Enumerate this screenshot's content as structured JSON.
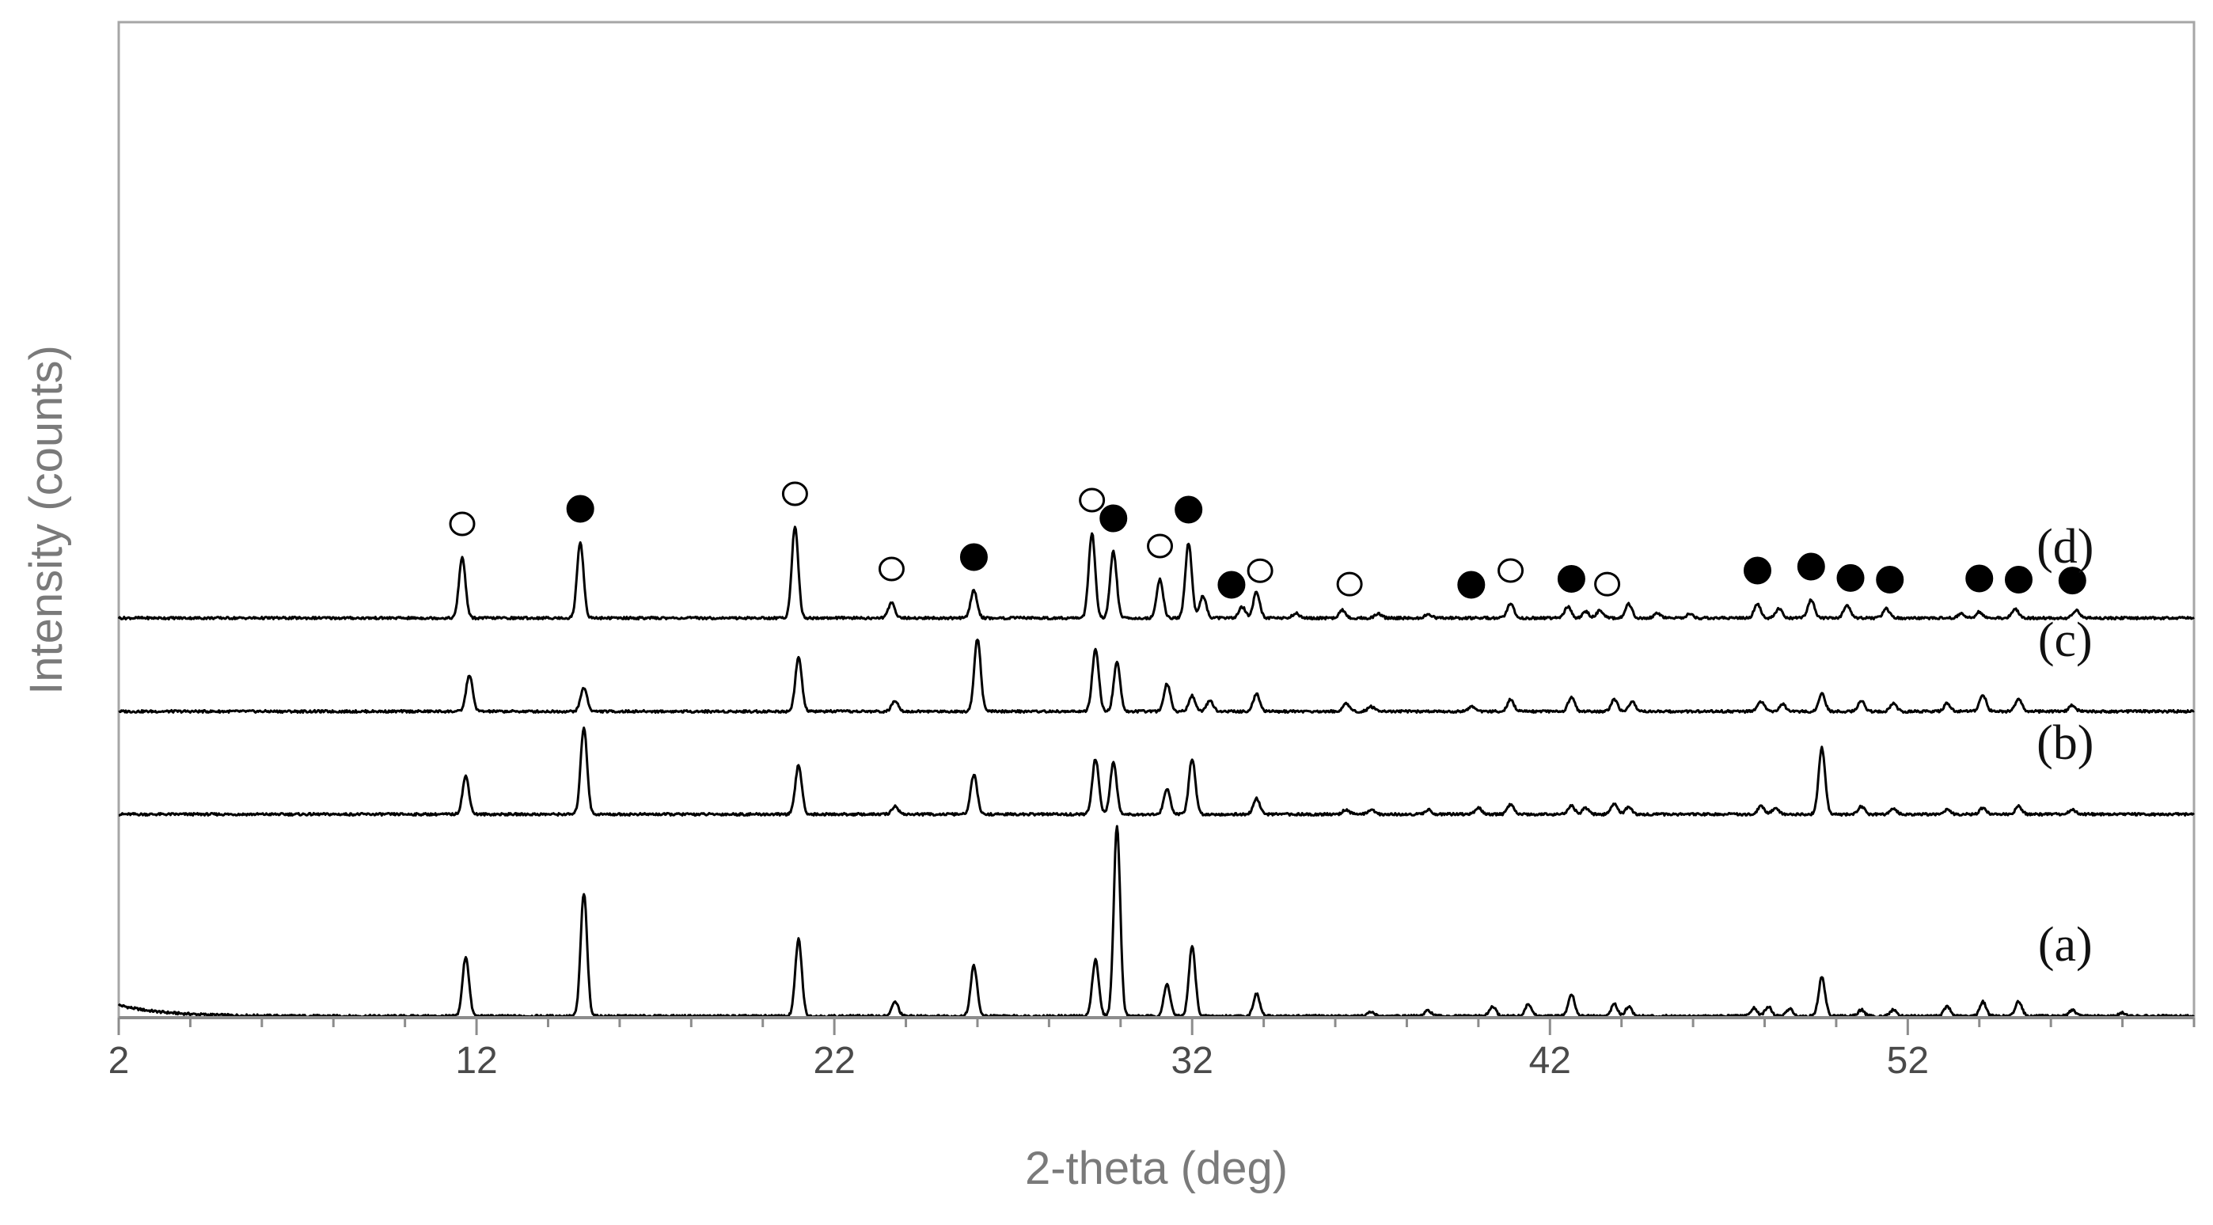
{
  "chart_data": {
    "type": "line",
    "xlabel": "2-theta (deg)",
    "ylabel": "Intensity (counts)",
    "xlim": [
      2,
      60
    ],
    "x_ticks": [
      2,
      12,
      22,
      32,
      42,
      52
    ],
    "y_ticks": [],
    "grid": false,
    "legend": "none",
    "colors": {
      "trace": "#000000",
      "axis": "#9a9a9a",
      "text": "#4a4a4a"
    },
    "markers": {
      "open": "open-circle",
      "filled": "filled-circle"
    },
    "series": [
      {
        "name": "(a)",
        "offset": 0,
        "peaks": [
          [
            11.7,
            75
          ],
          [
            15.0,
            155
          ],
          [
            21.0,
            97
          ],
          [
            23.7,
            18
          ],
          [
            25.9,
            64
          ],
          [
            29.3,
            72
          ],
          [
            29.9,
            240
          ],
          [
            31.3,
            40
          ],
          [
            32.0,
            88
          ],
          [
            33.8,
            28
          ],
          [
            37.0,
            5
          ],
          [
            38.6,
            7
          ],
          [
            40.4,
            12
          ],
          [
            41.4,
            15
          ],
          [
            42.6,
            28
          ],
          [
            43.8,
            15
          ],
          [
            44.2,
            12
          ],
          [
            47.7,
            10
          ],
          [
            48.1,
            12
          ],
          [
            48.7,
            9
          ],
          [
            49.6,
            49
          ],
          [
            50.7,
            8
          ],
          [
            51.6,
            8
          ],
          [
            53.1,
            12
          ],
          [
            54.1,
            18
          ],
          [
            55.1,
            19
          ],
          [
            56.6,
            8
          ],
          [
            58.0,
            4
          ]
        ]
      },
      {
        "name": "(b)",
        "offset": 255,
        "peaks": [
          [
            11.7,
            48
          ],
          [
            15.0,
            110
          ],
          [
            21.0,
            62
          ],
          [
            23.7,
            10
          ],
          [
            25.9,
            50
          ],
          [
            29.3,
            70
          ],
          [
            29.8,
            65
          ],
          [
            31.3,
            32
          ],
          [
            32.0,
            70
          ],
          [
            33.8,
            20
          ],
          [
            36.3,
            6
          ],
          [
            37.0,
            6
          ],
          [
            38.6,
            6
          ],
          [
            40.0,
            8
          ],
          [
            40.9,
            12
          ],
          [
            42.6,
            11
          ],
          [
            43.0,
            8
          ],
          [
            43.8,
            14
          ],
          [
            44.2,
            9
          ],
          [
            47.9,
            10
          ],
          [
            48.3,
            8
          ],
          [
            49.6,
            84
          ],
          [
            50.7,
            10
          ],
          [
            51.6,
            7
          ],
          [
            53.1,
            6
          ],
          [
            54.1,
            8
          ],
          [
            55.1,
            10
          ],
          [
            56.6,
            6
          ]
        ]
      },
      {
        "name": "(c)",
        "offset": 385,
        "peaks": [
          [
            11.8,
            46
          ],
          [
            15.0,
            30
          ],
          [
            21.0,
            68
          ],
          [
            23.7,
            14
          ],
          [
            26.0,
            92
          ],
          [
            29.3,
            79
          ],
          [
            29.9,
            62
          ],
          [
            31.3,
            35
          ],
          [
            32.0,
            20
          ],
          [
            32.5,
            14
          ],
          [
            33.8,
            22
          ],
          [
            36.3,
            10
          ],
          [
            37.0,
            6
          ],
          [
            39.8,
            6
          ],
          [
            40.9,
            15
          ],
          [
            42.6,
            18
          ],
          [
            43.8,
            15
          ],
          [
            44.3,
            12
          ],
          [
            47.9,
            12
          ],
          [
            48.5,
            9
          ],
          [
            49.6,
            22
          ],
          [
            50.7,
            14
          ],
          [
            51.6,
            10
          ],
          [
            53.1,
            10
          ],
          [
            54.1,
            21
          ],
          [
            55.1,
            16
          ],
          [
            56.6,
            8
          ]
        ]
      },
      {
        "name": "(d)",
        "offset": 503,
        "peaks": [
          [
            11.6,
            77
          ],
          [
            14.9,
            96
          ],
          [
            20.9,
            115
          ],
          [
            23.6,
            20
          ],
          [
            25.9,
            35
          ],
          [
            29.2,
            107
          ],
          [
            29.8,
            84
          ],
          [
            31.1,
            49
          ],
          [
            31.9,
            95
          ],
          [
            32.3,
            28
          ],
          [
            33.4,
            14
          ],
          [
            33.8,
            33
          ],
          [
            34.9,
            6
          ],
          [
            36.2,
            10
          ],
          [
            37.2,
            6
          ],
          [
            38.6,
            5
          ],
          [
            40.9,
            18
          ],
          [
            42.5,
            14
          ],
          [
            43.0,
            8
          ],
          [
            43.4,
            10
          ],
          [
            44.2,
            18
          ],
          [
            45.0,
            6
          ],
          [
            45.9,
            5
          ],
          [
            47.8,
            18
          ],
          [
            48.4,
            12
          ],
          [
            49.3,
            23
          ],
          [
            50.3,
            16
          ],
          [
            51.4,
            12
          ],
          [
            53.5,
            6
          ],
          [
            54.0,
            8
          ],
          [
            55.0,
            12
          ],
          [
            56.7,
            10
          ]
        ]
      }
    ],
    "phase_markers": [
      {
        "series": "(d)",
        "x": 11.6,
        "type": "open"
      },
      {
        "series": "(d)",
        "x": 14.9,
        "type": "filled"
      },
      {
        "series": "(d)",
        "x": 20.9,
        "type": "open"
      },
      {
        "series": "(d)",
        "x": 23.6,
        "type": "open"
      },
      {
        "series": "(d)",
        "x": 25.9,
        "type": "filled"
      },
      {
        "series": "(d)",
        "x": 29.2,
        "type": "open"
      },
      {
        "series": "(d)",
        "x": 29.8,
        "type": "filled"
      },
      {
        "series": "(d)",
        "x": 31.1,
        "type": "open"
      },
      {
        "series": "(d)",
        "x": 31.9,
        "type": "filled"
      },
      {
        "series": "(d)",
        "x": 33.1,
        "type": "filled"
      },
      {
        "series": "(d)",
        "x": 33.9,
        "type": "open"
      },
      {
        "series": "(d)",
        "x": 36.4,
        "type": "open"
      },
      {
        "series": "(d)",
        "x": 39.8,
        "type": "filled"
      },
      {
        "series": "(d)",
        "x": 40.9,
        "type": "open"
      },
      {
        "series": "(d)",
        "x": 42.6,
        "type": "filled"
      },
      {
        "series": "(d)",
        "x": 43.6,
        "type": "open"
      },
      {
        "series": "(d)",
        "x": 47.8,
        "type": "filled"
      },
      {
        "series": "(d)",
        "x": 49.3,
        "type": "filled"
      },
      {
        "series": "(d)",
        "x": 50.4,
        "type": "filled"
      },
      {
        "series": "(d)",
        "x": 51.5,
        "type": "filled"
      },
      {
        "series": "(d)",
        "x": 54.0,
        "type": "filled"
      },
      {
        "series": "(d)",
        "x": 55.1,
        "type": "filled"
      },
      {
        "series": "(d)",
        "x": 56.6,
        "type": "filled"
      }
    ]
  }
}
